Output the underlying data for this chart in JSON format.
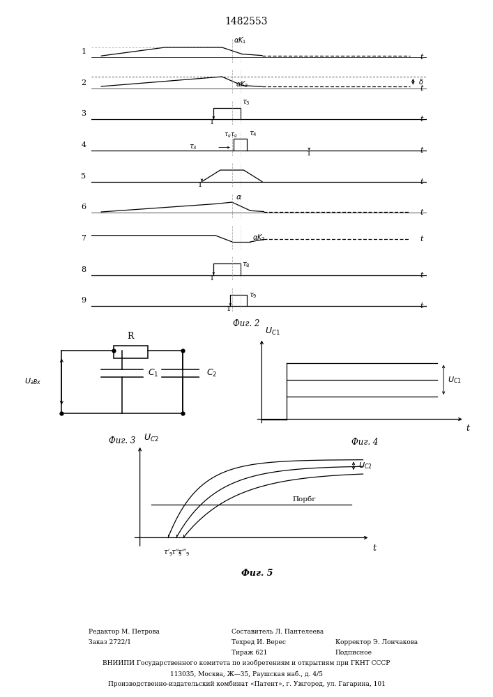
{
  "title": "1482553",
  "bg_color": "#ffffff",
  "fig2_label": "Фиг. 2",
  "fig3_label": "Фиг. 3",
  "fig4_label": "Фиг. 4",
  "fig5_label": "Фиг. 5",
  "footer_lines": [
    [
      0.2,
      "Редактор М. Петрова"
    ],
    [
      0.2,
      "Заказ 2722/1"
    ],
    [
      0.43,
      "Составитель Л. Пантелеева"
    ],
    [
      0.43,
      "Техред И. Верес"
    ],
    [
      0.43,
      "Тираж 621"
    ],
    [
      0.68,
      "Корректор Э. Лончакова"
    ],
    [
      0.68,
      "Подписное"
    ]
  ],
  "footer_long": [
    "ВНИИПИ Государственного комитета по изобретениям и открытиям при ГКНТ СССР",
    "113035, Москва, Ж—35, Раушская наб., д. 4/5",
    "Производственно-издательский комбинат «Патент», г. Ужгород, ул. Гагарина, 101"
  ]
}
